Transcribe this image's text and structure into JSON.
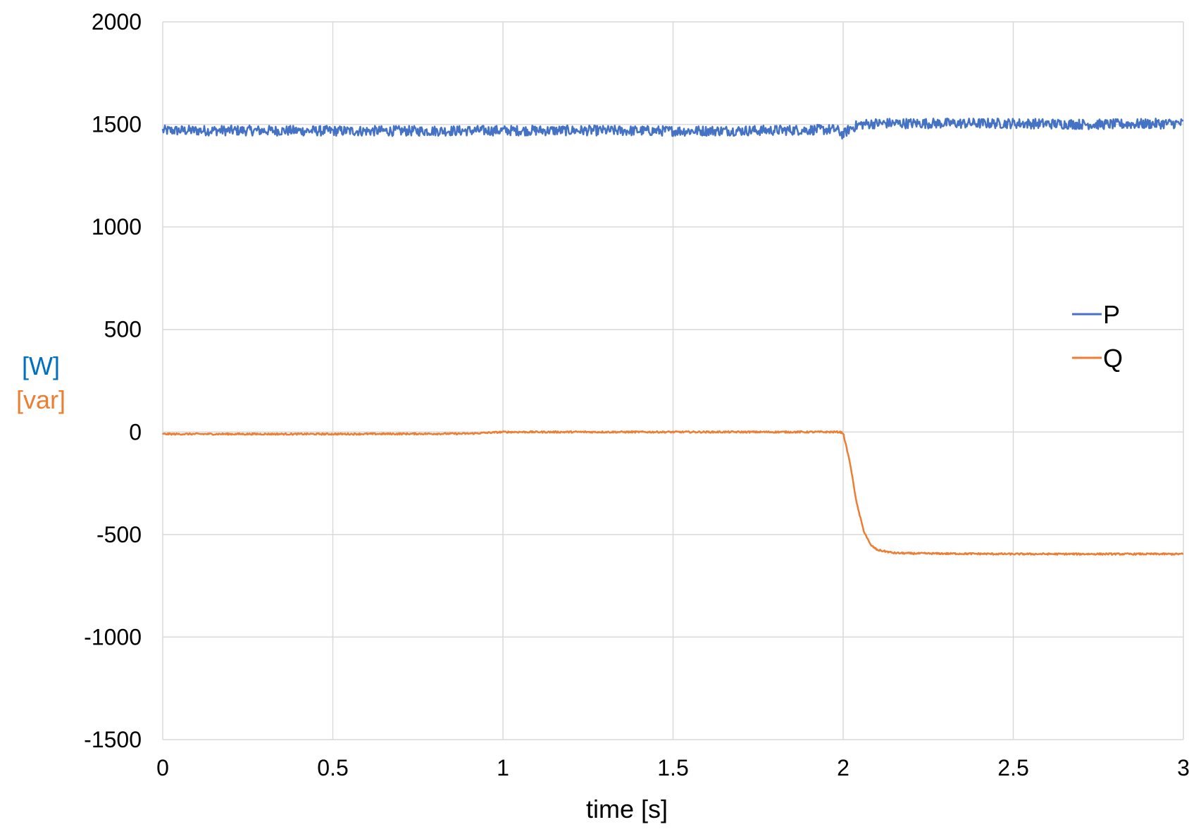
{
  "chart_data": {
    "type": "line",
    "title": "",
    "xlabel": "time [s]",
    "ylabel_lines": [
      "[W]",
      "[var]"
    ],
    "xlim": [
      0,
      3
    ],
    "ylim": [
      -1500,
      2000
    ],
    "x_ticks": [
      0,
      0.5,
      1,
      1.5,
      2,
      2.5,
      3
    ],
    "x_tick_labels": [
      "0",
      "0.5",
      "1",
      "1.5",
      "2",
      "2.5",
      "3"
    ],
    "y_ticks": [
      -1500,
      -1000,
      -500,
      0,
      500,
      1000,
      1500,
      2000
    ],
    "y_tick_labels": [
      "-1500",
      "-1000",
      "-500",
      "0",
      "500",
      "1000",
      "1500",
      "2000"
    ],
    "grid": true,
    "legend_position": "right",
    "colors": {
      "P": "#4472c4",
      "Q": "#ed7d31",
      "ylabel_W": "#0070c0",
      "ylabel_var": "#ed7d31"
    },
    "series": [
      {
        "name": "P",
        "color": "#4472c4",
        "x": [
          0,
          0.25,
          0.5,
          0.75,
          1.0,
          1.25,
          1.5,
          1.75,
          1.98,
          2.0,
          2.02,
          2.05,
          2.1,
          2.25,
          2.5,
          2.75,
          3.0
        ],
        "values": [
          1470,
          1470,
          1468,
          1468,
          1470,
          1470,
          1468,
          1470,
          1475,
          1450,
          1480,
          1500,
          1505,
          1505,
          1505,
          1500,
          1505
        ],
        "noise_amplitude": 25
      },
      {
        "name": "Q",
        "color": "#ed7d31",
        "x": [
          0,
          0.5,
          0.9,
          1.0,
          1.5,
          1.99,
          2.0,
          2.02,
          2.04,
          2.06,
          2.08,
          2.1,
          2.15,
          2.2,
          2.5,
          2.75,
          3.0
        ],
        "values": [
          -10,
          -10,
          -8,
          0,
          0,
          0,
          -5,
          -150,
          -350,
          -480,
          -550,
          -575,
          -590,
          -592,
          -595,
          -595,
          -595
        ],
        "noise_amplitude": 4
      }
    ]
  }
}
